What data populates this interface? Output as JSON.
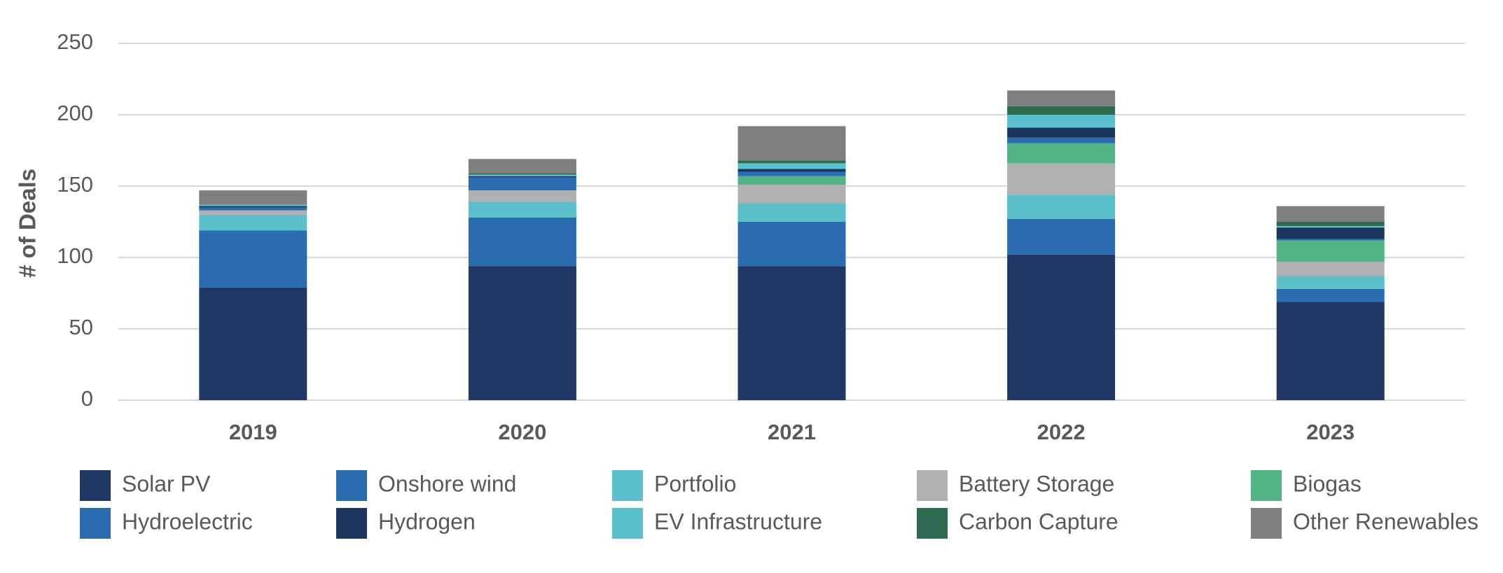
{
  "chart_data": {
    "type": "stacked_bar",
    "y_label": "# of Deals",
    "categories": [
      "2019",
      "2020",
      "2021",
      "2022",
      "2023"
    ],
    "series": [
      {
        "name": "Solar PV",
        "color": "#1f3864",
        "values": [
          79,
          94,
          94,
          102,
          69
        ]
      },
      {
        "name": "Onshore wind",
        "color": "#2b6cb0",
        "values": [
          40,
          34,
          31,
          25,
          9
        ]
      },
      {
        "name": "Portfolio",
        "color": "#5bbfcc",
        "values": [
          11,
          11,
          13,
          17,
          9
        ]
      },
      {
        "name": "Battery Storage",
        "color": "#aeb0b2",
        "values": [
          3,
          8,
          13,
          22,
          10
        ]
      },
      {
        "name": "Biogas",
        "color": "#52b386",
        "values": [
          0,
          0,
          6,
          14,
          15
        ]
      },
      {
        "name": "Hydroelectric",
        "color": "#2b6cb0",
        "values": [
          2,
          9,
          3,
          4,
          1
        ]
      },
      {
        "name": "Hydrogen",
        "color": "#1c355e",
        "values": [
          1,
          1,
          2,
          7,
          8
        ]
      },
      {
        "name": "EV Infrastructure",
        "color": "#5bbfcc",
        "values": [
          1,
          1,
          4,
          9,
          1
        ]
      },
      {
        "name": "Carbon Capture",
        "color": "#2f6b50",
        "values": [
          0,
          1,
          2,
          6,
          3
        ]
      },
      {
        "name": "Other Renewables",
        "color": "#7f7f7f",
        "values": [
          10,
          10,
          24,
          11,
          11
        ]
      }
    ],
    "ylim": [
      0,
      250
    ],
    "yticks": [
      0,
      50,
      100,
      150,
      200,
      250
    ],
    "grid": true
  }
}
